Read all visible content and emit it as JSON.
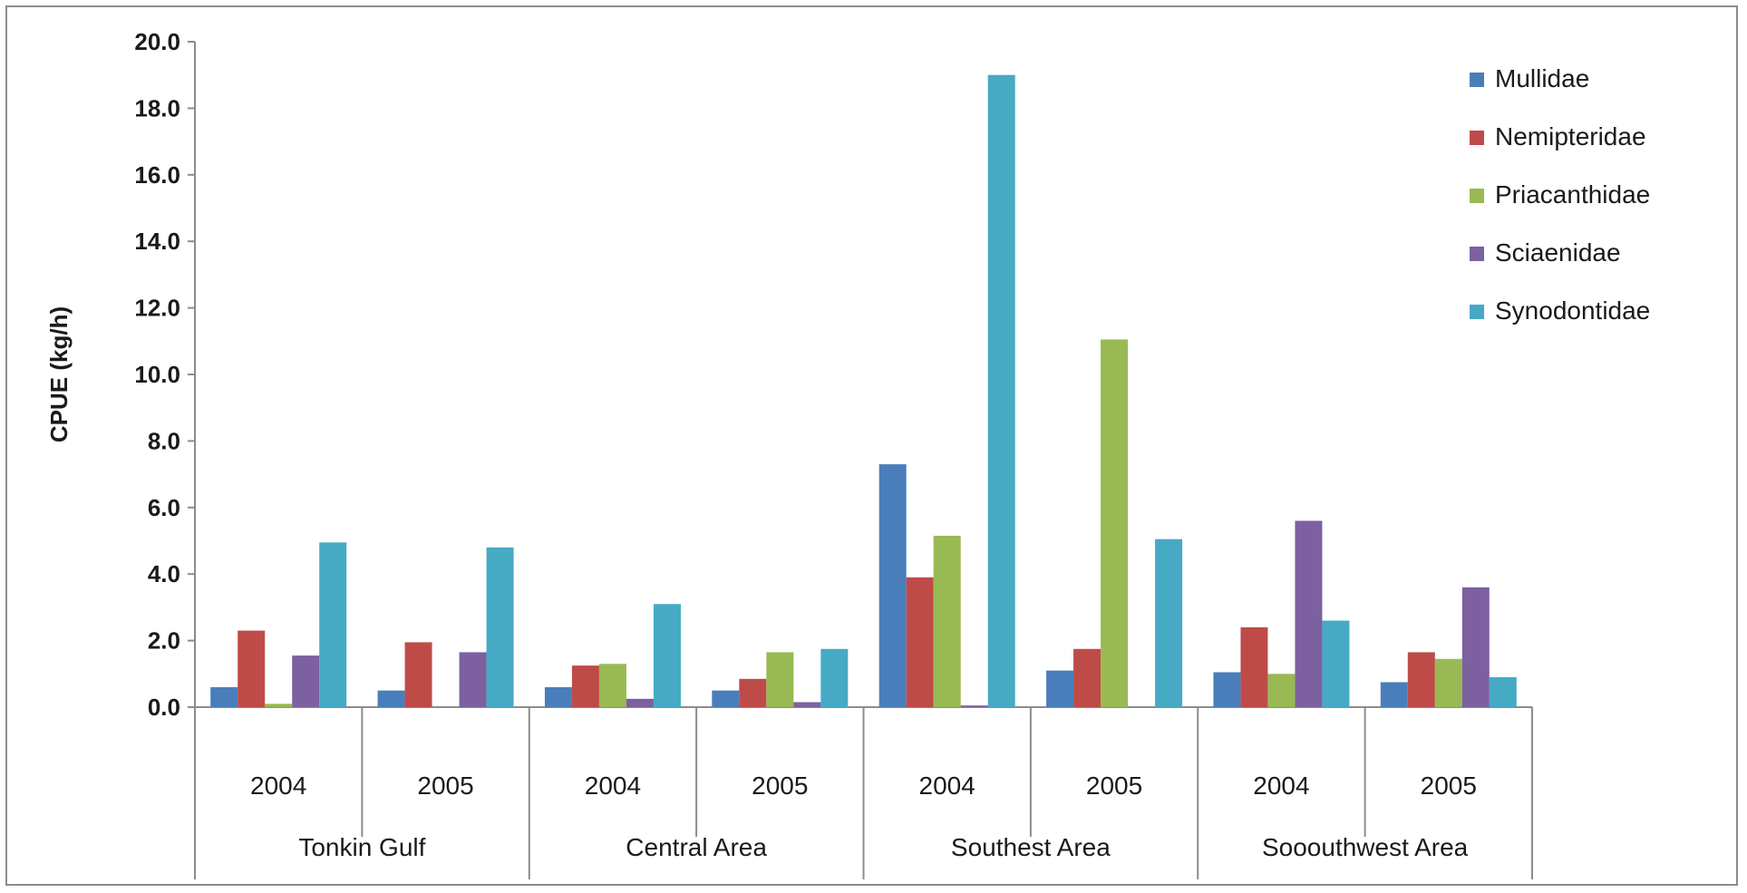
{
  "chart_data": {
    "type": "bar",
    "title": "",
    "xlabel": "",
    "ylabel": "CPUE (kg/h)",
    "ylim": [
      0,
      20
    ],
    "ytick_step": 2,
    "ytick_labels": [
      "0.0",
      "2.0",
      "4.0",
      "6.0",
      "8.0",
      "10.0",
      "12.0",
      "14.0",
      "16.0",
      "18.0",
      "20.0"
    ],
    "grid": false,
    "legend_position": "top-right",
    "groups": [
      {
        "name": "Tonkin Gulf",
        "categories": [
          "2004",
          "2005"
        ]
      },
      {
        "name": "Central Area",
        "categories": [
          "2004",
          "2005"
        ]
      },
      {
        "name": "Southest Area",
        "categories": [
          "2004",
          "2005"
        ]
      },
      {
        "name": "Sooouthwest Area",
        "categories": [
          "2004",
          "2005"
        ]
      }
    ],
    "categories": [
      "2004",
      "2005",
      "2004",
      "2005",
      "2004",
      "2005",
      "2004",
      "2005"
    ],
    "series": [
      {
        "name": "Mullidae",
        "color": "#4a7ebb",
        "values": [
          0.6,
          0.5,
          0.6,
          0.5,
          7.3,
          1.1,
          1.05,
          0.75
        ]
      },
      {
        "name": "Nemipteridae",
        "color": "#be4b48",
        "values": [
          2.3,
          1.95,
          1.25,
          0.85,
          3.9,
          1.75,
          2.4,
          1.65
        ]
      },
      {
        "name": "Priacanthidae",
        "color": "#98b954",
        "values": [
          0.1,
          0.0,
          1.3,
          1.65,
          5.15,
          11.05,
          1.0,
          1.45
        ]
      },
      {
        "name": "Sciaenidae",
        "color": "#7d60a0",
        "values": [
          1.55,
          1.65,
          0.25,
          0.15,
          0.05,
          0.0,
          5.6,
          3.6
        ]
      },
      {
        "name": "Synodontidae",
        "color": "#46aac5",
        "values": [
          4.95,
          4.8,
          3.1,
          1.75,
          19.0,
          5.05,
          2.6,
          0.9
        ]
      }
    ]
  }
}
